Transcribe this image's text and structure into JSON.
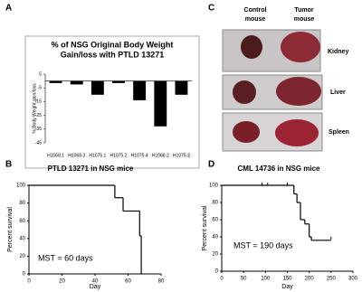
{
  "panel_labels": [
    "A",
    "B",
    "C",
    "D"
  ],
  "photo": {
    "columns": [
      [
        "Control",
        "mouse"
      ],
      [
        "Tumor",
        "mouse"
      ]
    ],
    "rows": [
      "Kidney",
      "Liver",
      "Spleen"
    ]
  },
  "chart_data": [
    {
      "type": "bar",
      "title": [
        "% of NSG Original Body Weight",
        "Gain/loss with PTLD 13271"
      ],
      "y_label": "% Body Weight gain/loss",
      "categories": [
        "H1068.1",
        "H1068.3",
        "H1075.1",
        "H1075.2",
        "H1075.4",
        "H1068.2",
        "H1075.3"
      ],
      "values": [
        -1.5,
        -2.5,
        -10,
        -1.5,
        -14,
        -33,
        -10
      ],
      "color": "#000000",
      "ylim": [
        -45,
        5
      ],
      "yticks": [
        5,
        -5,
        -15,
        -25,
        -35,
        -45
      ]
    },
    {
      "type": "step",
      "title": "PTLD 13271 in NSG mice",
      "x_label": "Day",
      "y_label": "Percent survival",
      "annotation": "MST = 60 days",
      "x": [
        0,
        52,
        57,
        67,
        68
      ],
      "values": [
        100,
        86,
        71,
        43,
        0
      ],
      "color": "#000000",
      "xlim": [
        0,
        80
      ],
      "xticks": [
        0,
        20,
        40,
        60,
        80
      ],
      "ylim": [
        0,
        100
      ],
      "yticks": [
        0,
        20,
        40,
        60,
        80,
        100
      ]
    },
    {
      "type": "step",
      "title": "CML 14736 in NSG mice",
      "x_label": "Day",
      "y_label": "Percent survival",
      "annotation": "MST = 190 days",
      "x": [
        0,
        165,
        172,
        180,
        190,
        200,
        205
      ],
      "values": [
        100,
        90,
        80,
        60,
        55,
        40,
        36
      ],
      "x_end": 250,
      "censored": {
        "x": [
          92,
          105,
          150,
          250
        ],
        "values": [
          100,
          100,
          100,
          37
        ]
      },
      "color": "#000000",
      "xlim": [
        0,
        300
      ],
      "xticks": [
        0,
        50,
        100,
        150,
        200,
        250,
        300
      ],
      "ylim": [
        0,
        100
      ],
      "yticks": [
        0,
        20,
        40,
        60,
        80,
        100
      ]
    }
  ]
}
